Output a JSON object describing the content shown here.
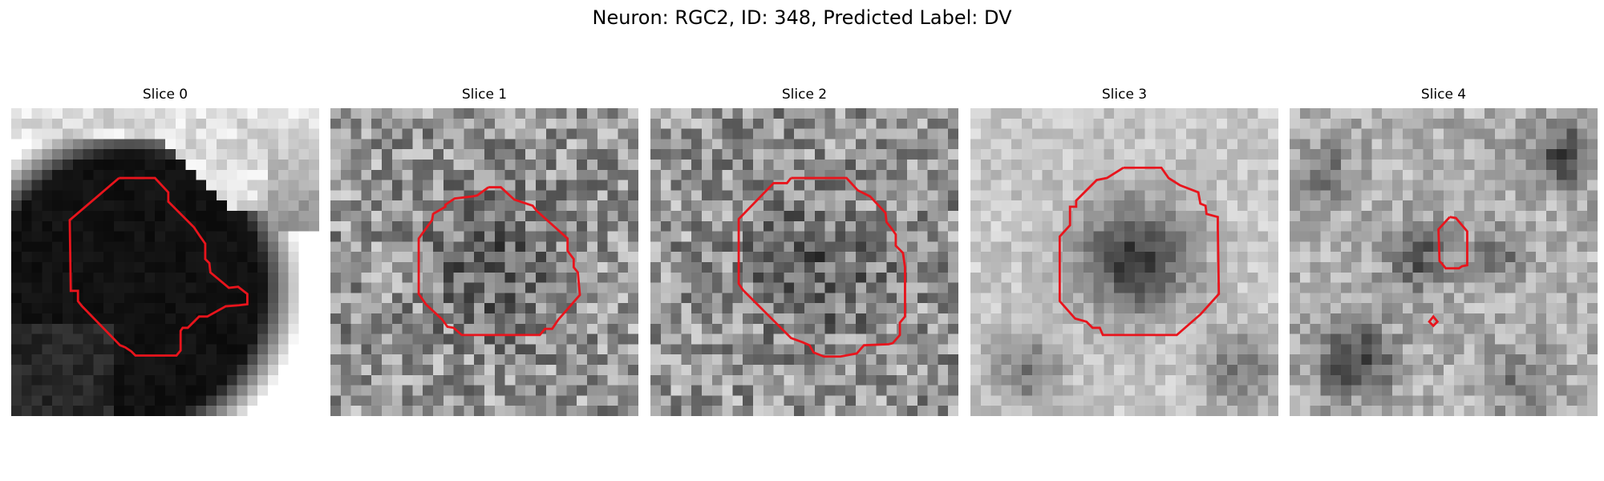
{
  "figure": {
    "title": "Neuron: RGC2, ID: 348, Predicted Label: DV"
  },
  "panels": [
    {
      "title": "Slice 0",
      "texture": "dark-blob-corner"
    },
    {
      "title": "Slice 1",
      "texture": "noisy-gray"
    },
    {
      "title": "Slice 2",
      "texture": "noisy-gray"
    },
    {
      "title": "Slice 3",
      "texture": "smooth-dark-center"
    },
    {
      "title": "Slice 4",
      "texture": "mottled-gray"
    }
  ],
  "colors": {
    "contour": "#e8141c",
    "background": "#ffffff"
  }
}
